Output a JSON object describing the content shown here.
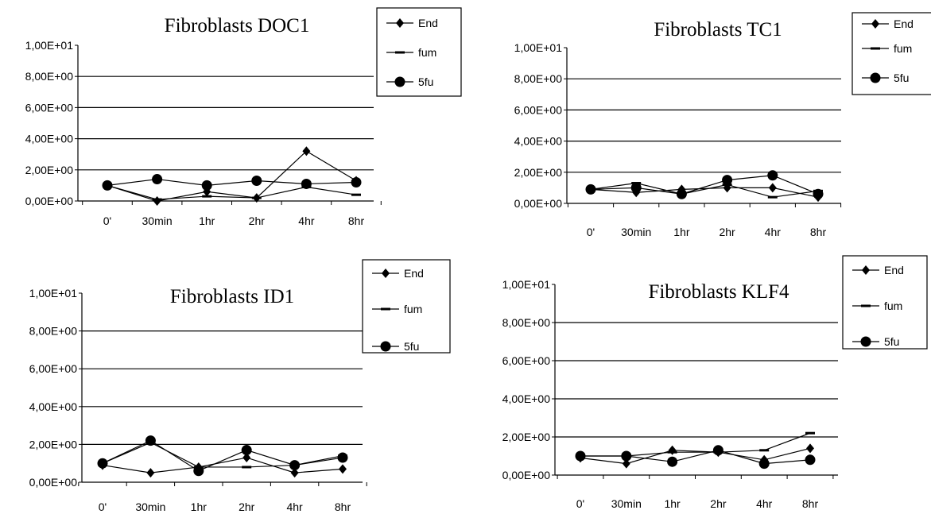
{
  "chart_data": [
    {
      "type": "line",
      "title": "Fibroblasts DOC1",
      "categories": [
        "0'",
        "30min",
        "1hr",
        "2hr",
        "4hr",
        "8hr"
      ],
      "y_ticks": [
        "1,00E+01",
        "8,00E+00",
        "6,00E+00",
        "4,00E+00",
        "2,00E+00",
        "0,00E+00"
      ],
      "ylim": [
        0,
        10
      ],
      "grid": true,
      "legend_position": "top-right",
      "series": [
        {
          "name": "End",
          "marker": "diamond",
          "values": [
            1.0,
            0.0,
            0.6,
            0.2,
            3.2,
            1.3
          ]
        },
        {
          "name": "fum",
          "marker": "dash",
          "values": [
            1.0,
            0.1,
            0.3,
            0.2,
            0.9,
            0.4
          ]
        },
        {
          "name": "5fu",
          "marker": "circle",
          "values": [
            1.0,
            1.4,
            1.0,
            1.3,
            1.1,
            1.2
          ]
        }
      ]
    },
    {
      "type": "line",
      "title": "Fibroblasts TC1",
      "categories": [
        "0'",
        "30min",
        "1hr",
        "2hr",
        "4hr",
        "8hr"
      ],
      "y_ticks": [
        "1,00E+01",
        "8,00E+00",
        "6,00E+00",
        "4,00E+00",
        "2,00E+00",
        "0,00E+00"
      ],
      "ylim": [
        0,
        10
      ],
      "grid": true,
      "legend_position": "top-right",
      "series": [
        {
          "name": "End",
          "marker": "diamond",
          "values": [
            0.9,
            0.7,
            0.9,
            1.0,
            1.0,
            0.4
          ]
        },
        {
          "name": "fum",
          "marker": "dash",
          "values": [
            0.9,
            1.3,
            0.6,
            1.2,
            0.4,
            0.8
          ]
        },
        {
          "name": "5fu",
          "marker": "circle",
          "values": [
            0.9,
            1.0,
            0.6,
            1.5,
            1.8,
            0.6
          ]
        }
      ]
    },
    {
      "type": "line",
      "title": "Fibroblasts ID1",
      "categories": [
        "0'",
        "30min",
        "1hr",
        "2hr",
        "4hr",
        "8hr"
      ],
      "y_ticks": [
        "1,00E+01",
        "8,00E+00",
        "6,00E+00",
        "4,00E+00",
        "2,00E+00",
        "0,00E+00"
      ],
      "ylim": [
        0,
        10
      ],
      "grid": true,
      "legend_position": "top-right",
      "series": [
        {
          "name": "End",
          "marker": "diamond",
          "values": [
            0.9,
            0.5,
            0.8,
            1.3,
            0.5,
            0.7
          ]
        },
        {
          "name": "fum",
          "marker": "dash",
          "values": [
            1.0,
            2.1,
            0.8,
            0.8,
            0.9,
            1.4
          ]
        },
        {
          "name": "5fu",
          "marker": "circle",
          "values": [
            1.0,
            2.2,
            0.6,
            1.7,
            0.9,
            1.3
          ]
        }
      ]
    },
    {
      "type": "line",
      "title": "Fibroblasts KLF4",
      "categories": [
        "0'",
        "30min",
        "1hr",
        "2hr",
        "4hr",
        "8hr"
      ],
      "y_ticks": [
        "1,00E+01",
        "8,00E+00",
        "6,00E+00",
        "4,00E+00",
        "2,00E+00",
        "0,00E+00"
      ],
      "ylim": [
        0,
        10
      ],
      "grid": true,
      "legend_position": "top-right",
      "series": [
        {
          "name": "End",
          "marker": "diamond",
          "values": [
            0.9,
            0.6,
            1.3,
            1.2,
            0.8,
            1.4
          ]
        },
        {
          "name": "fum",
          "marker": "dash",
          "values": [
            1.0,
            1.0,
            1.2,
            1.2,
            1.3,
            2.2
          ]
        },
        {
          "name": "5fu",
          "marker": "circle",
          "values": [
            1.0,
            1.0,
            0.7,
            1.3,
            0.6,
            0.8
          ]
        }
      ]
    }
  ]
}
